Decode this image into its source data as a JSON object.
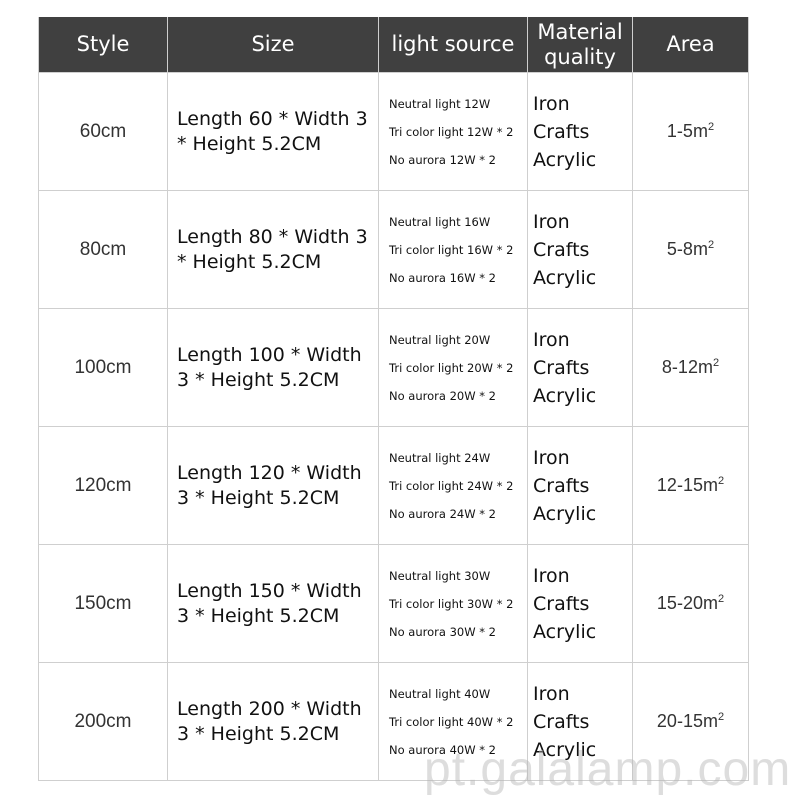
{
  "headers": [
    "Style",
    "Size",
    "light source",
    "Material quality",
    "Area"
  ],
  "rows": [
    {
      "style": "60cm",
      "size": "Length 60 * Width 3 * Height 5.2CM",
      "light": [
        "Neutral light 12W",
        "Tri color light 12W * 2",
        "No aurora 12W * 2"
      ],
      "material": [
        "Iron Crafts",
        "Acrylic"
      ],
      "area": "1-5m",
      "area_sup": "2"
    },
    {
      "style": "80cm",
      "size": "Length 80 * Width 3 * Height 5.2CM",
      "light": [
        "Neutral light 16W",
        "Tri color light 16W * 2",
        "No aurora 16W * 2"
      ],
      "material": [
        "Iron Crafts",
        "Acrylic"
      ],
      "area": "5-8m",
      "area_sup": "2"
    },
    {
      "style": "100cm",
      "size": "Length 100 * Width 3 * Height 5.2CM",
      "light": [
        "Neutral light 20W",
        "Tri color light 20W * 2",
        "No aurora 20W * 2"
      ],
      "material": [
        "Iron Crafts",
        "Acrylic"
      ],
      "area": "8-12m",
      "area_sup": "2"
    },
    {
      "style": "120cm",
      "size": "Length 120 * Width 3 * Height 5.2CM",
      "light": [
        "Neutral light 24W",
        "Tri color light 24W * 2",
        "No aurora 24W * 2"
      ],
      "material": [
        "Iron Crafts",
        "Acrylic"
      ],
      "area": "12-15m",
      "area_sup": "2"
    },
    {
      "style": "150cm",
      "size": "Length 150 * Width 3 * Height 5.2CM",
      "light": [
        "Neutral light 30W",
        "Tri color light 30W * 2",
        "No aurora 30W * 2"
      ],
      "material": [
        "Iron Crafts",
        "Acrylic"
      ],
      "area": "15-20m",
      "area_sup": "2"
    },
    {
      "style": "200cm",
      "size": "Length 200 * Width 3 * Height 5.2CM",
      "light": [
        "Neutral light 40W",
        "Tri color light 40W * 2",
        "No aurora 40W * 2"
      ],
      "material": [
        "Iron Crafts",
        "Acrylic"
      ],
      "area": "20-15m",
      "area_sup": "2"
    }
  ],
  "watermark": "pt.galalamp.com",
  "colors": {
    "header_bg": "#404040",
    "header_text": "#ffffff",
    "grid": "#cfcfcf"
  }
}
